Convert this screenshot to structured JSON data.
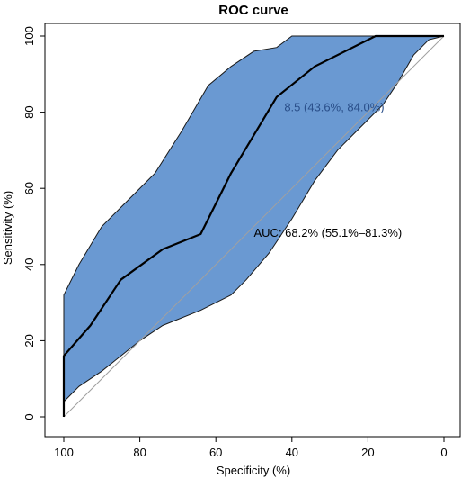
{
  "chart_data": {
    "type": "line",
    "title": "ROC curve",
    "xlabel": "Specificity (%)",
    "ylabel": "Sensitivity (%)",
    "xlim": [
      100,
      0
    ],
    "ylim": [
      0,
      100
    ],
    "x_reversed": true,
    "xticks": [
      "100",
      "80",
      "60",
      "40",
      "20",
      "0"
    ],
    "yticks": [
      "0",
      "20",
      "40",
      "60",
      "80",
      "100"
    ],
    "xtick_values": [
      100,
      80,
      60,
      40,
      20,
      0
    ],
    "ytick_values": [
      0,
      20,
      40,
      60,
      80,
      100
    ],
    "grid": false,
    "legend": false,
    "colors": {
      "ci_band": "#6a99d2",
      "ci_band_edge": "#1a1a1a",
      "roc_line": "#000000",
      "diagonal": "#a0a0a0",
      "threshold_text": "#2a4f8a",
      "auc_text": "#000000"
    },
    "ci_upper": {
      "x": [
        100,
        100,
        96,
        90,
        84,
        76,
        69,
        62,
        56,
        50,
        44,
        40,
        30,
        20,
        10,
        0
      ],
      "y": [
        0,
        32,
        40,
        50,
        56,
        64,
        75,
        87,
        92,
        96,
        97,
        100,
        100,
        100,
        100,
        100
      ]
    },
    "ci_lower": {
      "x": [
        0,
        4,
        8,
        12,
        16,
        22,
        28,
        34,
        40,
        46,
        52,
        56,
        64,
        74,
        80,
        90,
        96,
        100
      ],
      "y": [
        100,
        99,
        95,
        88,
        82,
        76,
        70,
        62,
        52,
        43,
        36,
        32,
        28,
        24,
        20,
        12,
        8,
        4
      ]
    },
    "roc_curve": {
      "x": [
        100,
        100,
        93,
        85,
        74,
        64,
        56,
        44,
        34,
        18,
        0
      ],
      "y": [
        0,
        16,
        24,
        36,
        44,
        48,
        64,
        84,
        92,
        100,
        100
      ]
    },
    "diagonal": {
      "x": [
        100,
        0
      ],
      "y": [
        0,
        100
      ]
    },
    "annotations": [
      {
        "text": "8.5 (43.6%, 84.0%)",
        "x": 42,
        "y": 81.5,
        "color_key": "threshold_text"
      },
      {
        "text": "AUC: 68.2% (55.1%–81.3%)",
        "x": 50,
        "y": 48.5,
        "color_key": "auc_text"
      }
    ]
  }
}
